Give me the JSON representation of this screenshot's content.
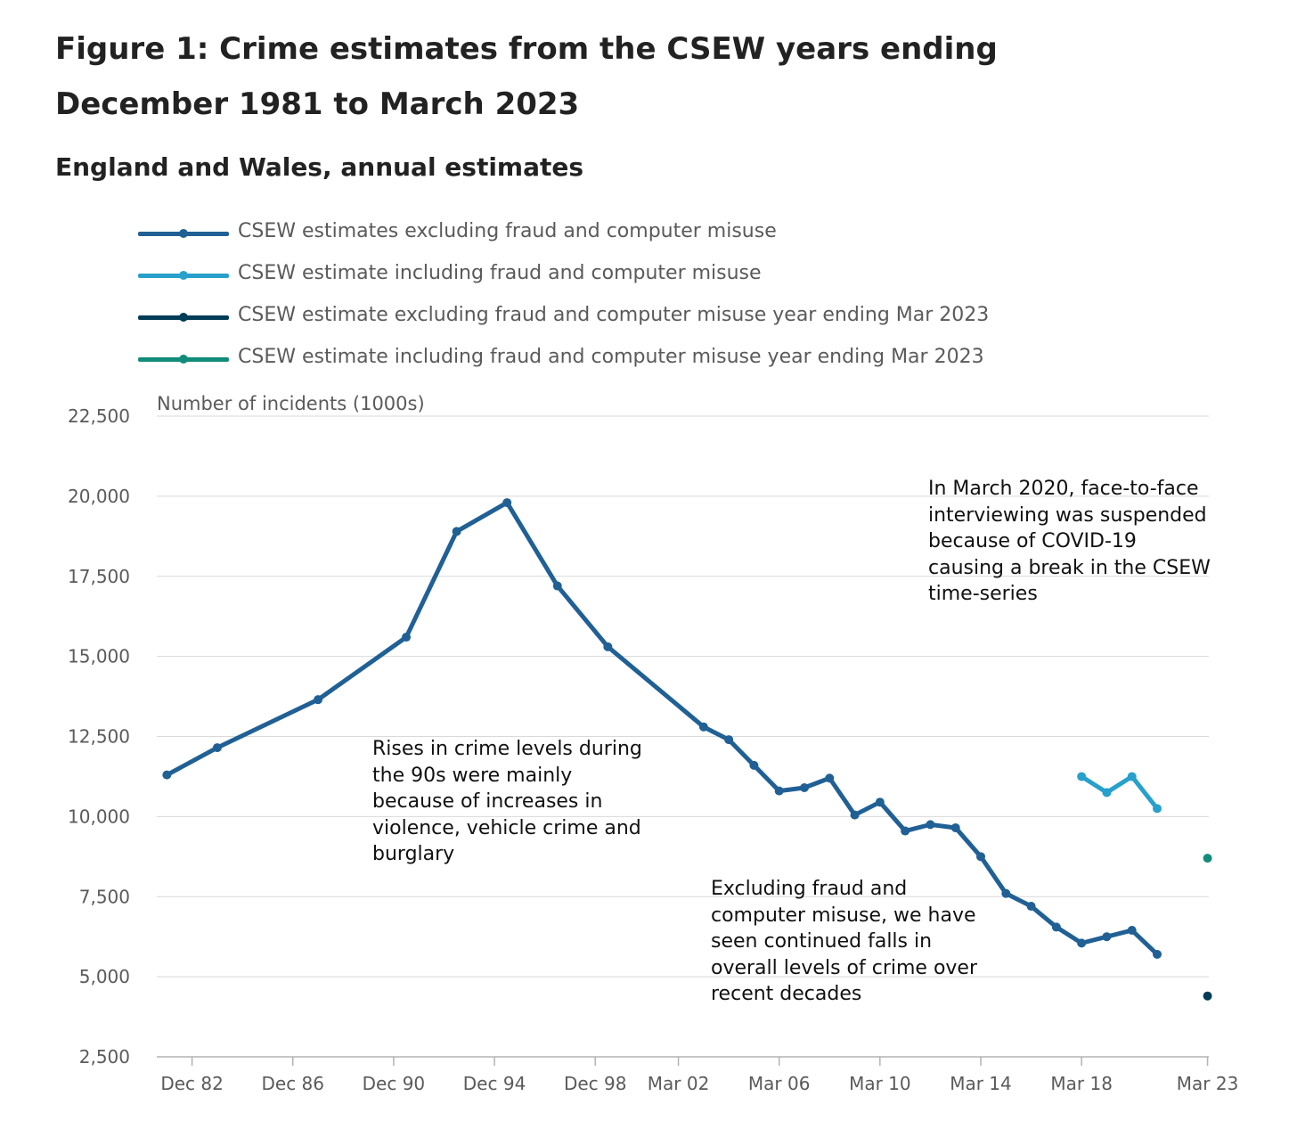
{
  "title": "Figure 1: Crime estimates from the CSEW years ending December 1981 to March 2023",
  "subtitle": "England and Wales, annual estimates",
  "colors": {
    "series_excl": "#206095",
    "series_incl": "#27a0cc",
    "point_excl_2023": "#003c57",
    "point_incl_2023": "#118c7b"
  },
  "annotations": {
    "rises": "Rises in crime levels during the 90s were mainly because of increases in violence, vehicle crime and burglary",
    "falls": "Excluding fraud and computer misuse, we have seen continued falls in overall levels of crime over recent decades",
    "covid": "In March 2020, face-to-face interviewing was suspended because of COVID-19 causing a break in the CSEW time-series"
  },
  "chart_data": {
    "type": "line",
    "title": "Figure 1: Crime estimates from the CSEW years ending December 1981 to March 2023",
    "subtitle": "England and Wales, annual estimates",
    "xlabel": "",
    "ylabel": "Number of incidents (1000s)",
    "ylim": [
      2500,
      22500
    ],
    "yticks": [
      2500,
      5000,
      7500,
      10000,
      12500,
      15000,
      17500,
      20000,
      22500
    ],
    "ytick_labels": [
      "2,500",
      "5,000",
      "7,500",
      "10,000",
      "12,500",
      "15,000",
      "17,500",
      "20,000",
      "22,500"
    ],
    "xlim": [
      1981.5,
      2023.25
    ],
    "xticks": [
      1982.9,
      1986.9,
      1990.9,
      1994.9,
      1998.9,
      2002.2,
      2006.2,
      2010.2,
      2014.2,
      2018.2,
      2023.2
    ],
    "xtick_labels": [
      "Dec 82",
      "Dec 86",
      "Dec 90",
      "Dec 94",
      "Dec 98",
      "Mar 02",
      "Mar 06",
      "Mar 10",
      "Mar 14",
      "Mar 18",
      "Mar 23"
    ],
    "grid": true,
    "legend_position": "top-left",
    "series": [
      {
        "name": "CSEW estimates excluding fraud and computer misuse",
        "points": [
          [
            1981.9,
            11300
          ],
          [
            1983.9,
            12150
          ],
          [
            1987.9,
            13650
          ],
          [
            1991.4,
            15600
          ],
          [
            1993.4,
            18900
          ],
          [
            1995.4,
            19800
          ],
          [
            1997.4,
            17200
          ],
          [
            1999.4,
            15300
          ],
          [
            2003.2,
            12800
          ],
          [
            2004.2,
            12400
          ],
          [
            2005.2,
            11600
          ],
          [
            2006.2,
            10800
          ],
          [
            2007.2,
            10900
          ],
          [
            2008.2,
            11200
          ],
          [
            2009.2,
            10050
          ],
          [
            2010.2,
            10450
          ],
          [
            2011.2,
            9550
          ],
          [
            2012.2,
            9750
          ],
          [
            2013.2,
            9650
          ],
          [
            2014.2,
            8750
          ],
          [
            2015.2,
            7600
          ],
          [
            2016.2,
            7200
          ],
          [
            2017.2,
            6550
          ],
          [
            2018.2,
            6050
          ],
          [
            2019.2,
            6250
          ],
          [
            2020.2,
            6450
          ],
          [
            2021.2,
            5700
          ]
        ]
      },
      {
        "name": "CSEW estimate including fraud and computer misuse",
        "points": [
          [
            2018.2,
            11250
          ],
          [
            2019.2,
            10750
          ],
          [
            2020.2,
            11250
          ],
          [
            2021.2,
            10250
          ]
        ]
      },
      {
        "name": "CSEW estimate excluding fraud and computer misuse year ending Mar 2023",
        "points": [
          [
            2023.2,
            4400
          ]
        ]
      },
      {
        "name": "CSEW estimate including fraud and computer misuse year ending Mar 2023",
        "points": [
          [
            2023.2,
            8700
          ]
        ]
      }
    ]
  }
}
